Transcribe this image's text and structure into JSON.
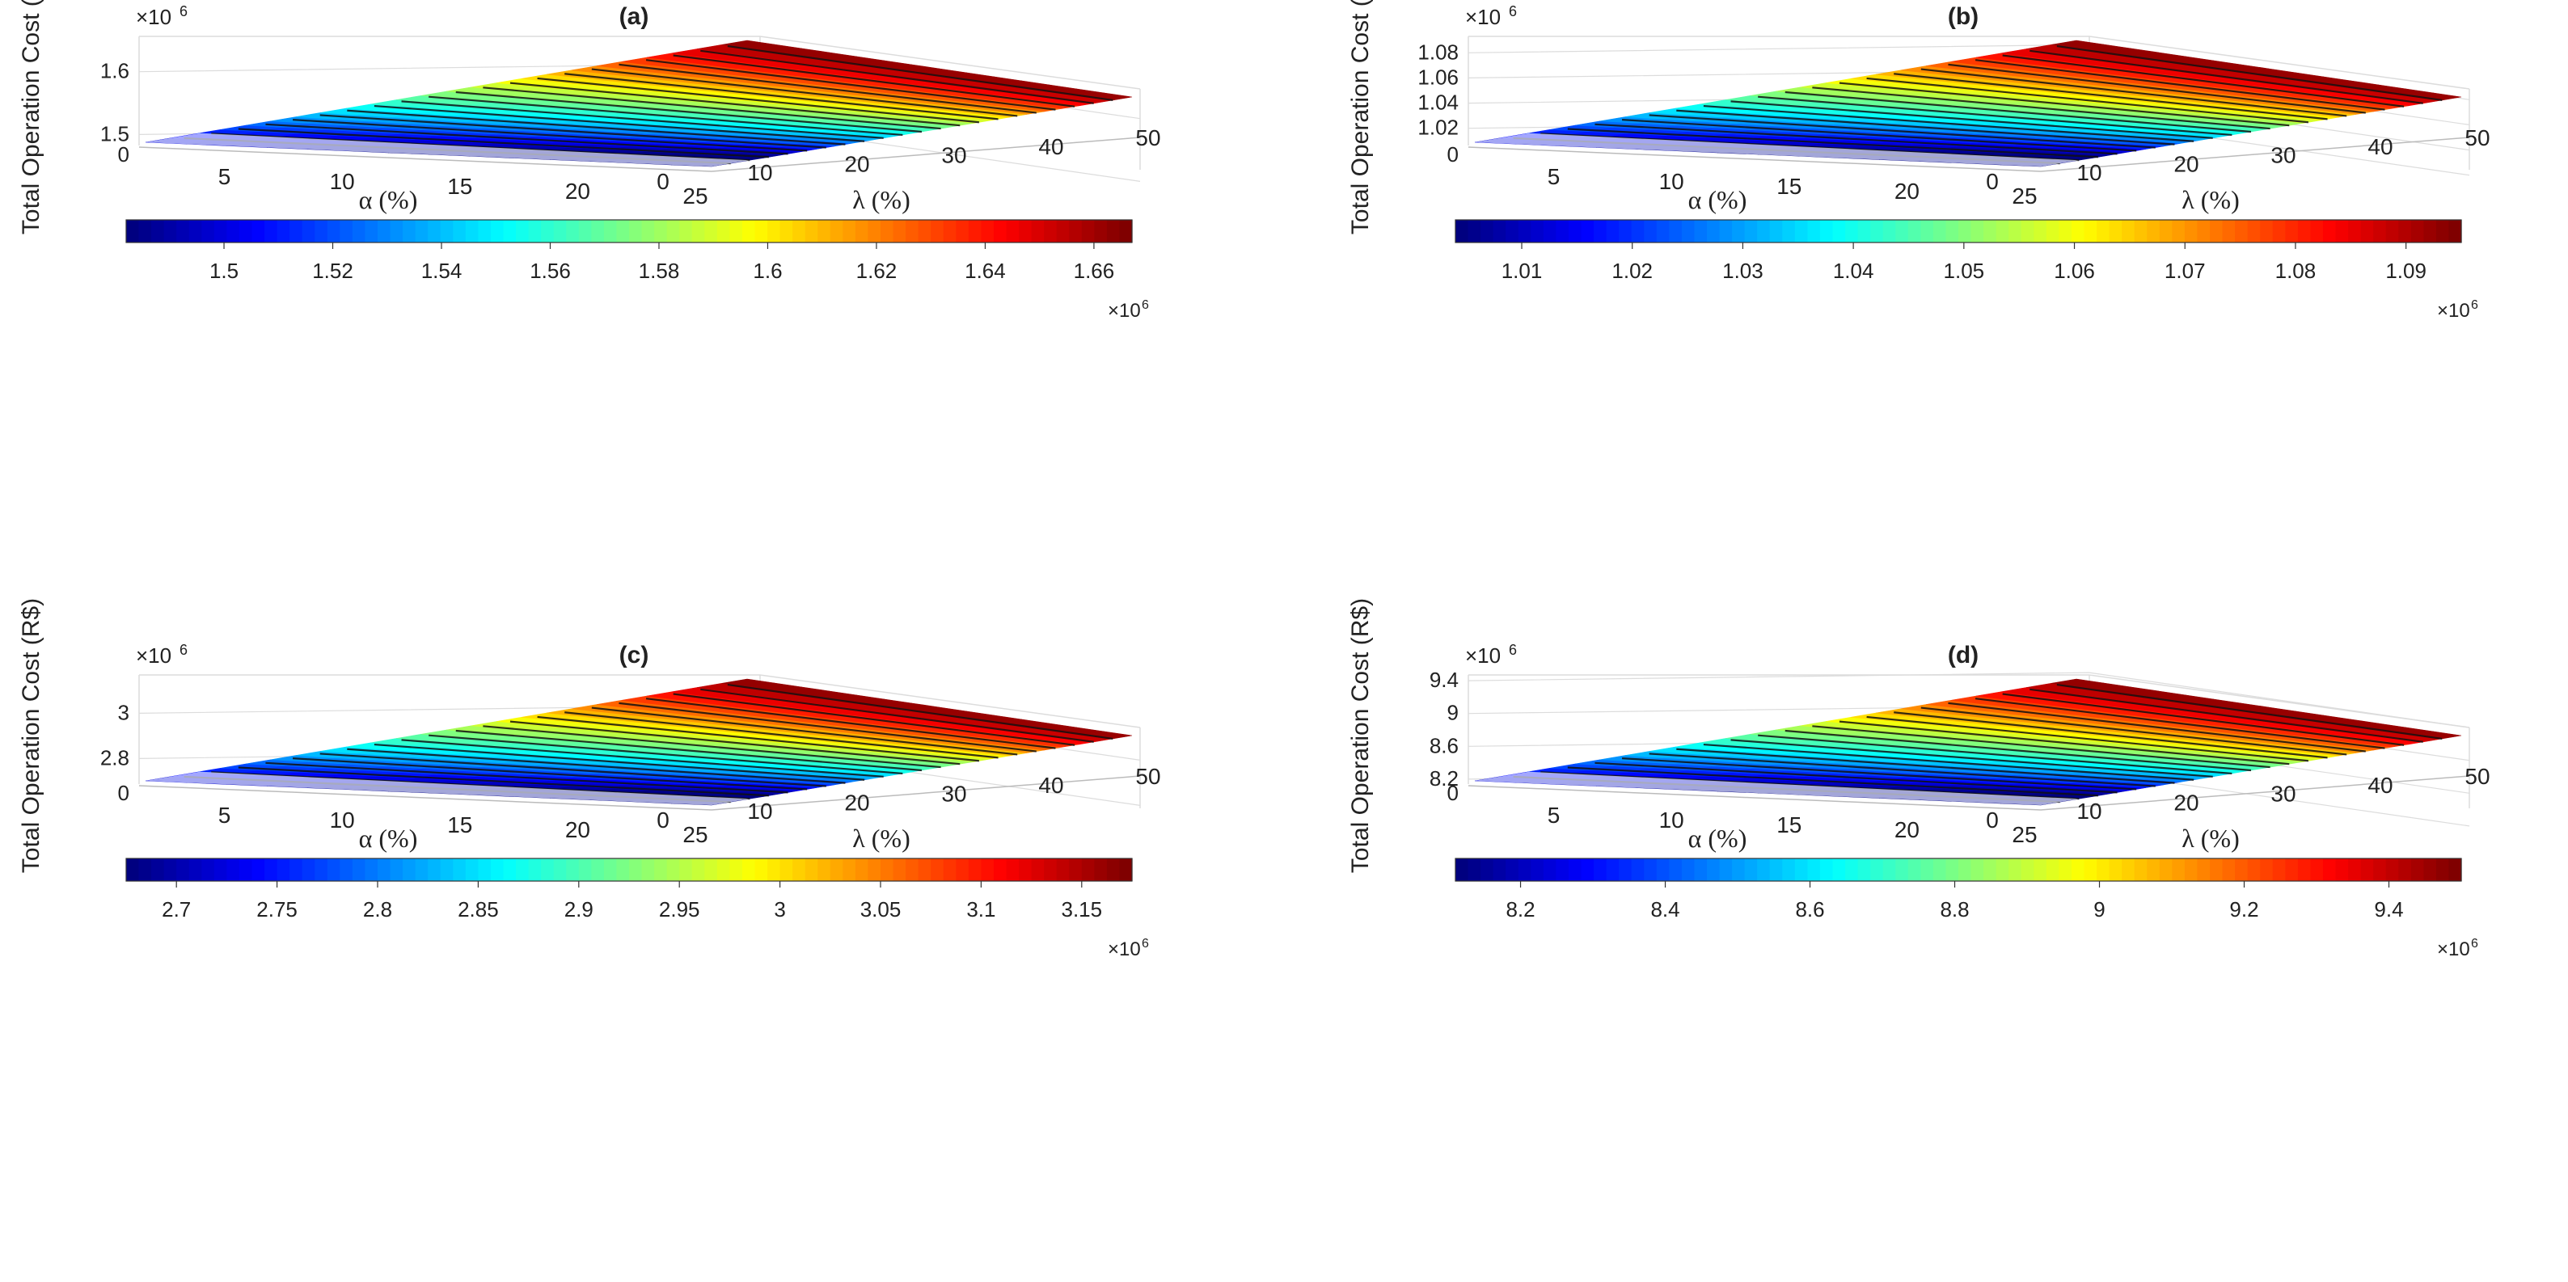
{
  "chart_data": [
    {
      "type": "surface3d",
      "panel_label": "(a)",
      "zlabel": "Total Operation Cost (R$)",
      "z_exponent_label": "×10",
      "z_exponent_power": "6",
      "xlabel": "α (%)",
      "ylabel": "λ (%)",
      "x_ticks": [
        "0",
        "5",
        "10",
        "15",
        "20",
        "25"
      ],
      "y_ticks": [
        "0",
        "10",
        "20",
        "30",
        "40",
        "50"
      ],
      "x_range": [
        0,
        25
      ],
      "y_range": [
        0,
        50
      ],
      "z_ticks": [
        "1.5",
        "1.6"
      ],
      "z_tick_values": [
        1.5,
        1.6
      ],
      "z_range": [
        1.48,
        1.66
      ],
      "colorbar_ticks": [
        "1.5",
        "1.52",
        "1.54",
        "1.56",
        "1.58",
        "1.6",
        "1.62",
        "1.64",
        "1.66"
      ],
      "colorbar_tick_values": [
        1.5,
        1.52,
        1.54,
        1.56,
        1.58,
        1.6,
        1.62,
        1.64,
        1.66
      ],
      "colorbar_range": [
        1.482,
        1.667
      ],
      "colorbar_exponent_label": "×10",
      "colorbar_exponent_power": "6",
      "colormap": "jet"
    },
    {
      "type": "surface3d",
      "panel_label": "(b)",
      "zlabel": "Total Operation Cost (R$)",
      "z_exponent_label": "×10",
      "z_exponent_power": "6",
      "xlabel": "α (%)",
      "ylabel": "λ (%)",
      "x_ticks": [
        "0",
        "5",
        "10",
        "15",
        "20",
        "25"
      ],
      "y_ticks": [
        "0",
        "10",
        "20",
        "30",
        "40",
        "50"
      ],
      "x_range": [
        0,
        25
      ],
      "y_range": [
        0,
        50
      ],
      "z_ticks": [
        "1.02",
        "1.04",
        "1.06",
        "1.08"
      ],
      "z_tick_values": [
        1.02,
        1.04,
        1.06,
        1.08
      ],
      "z_range": [
        1.005,
        1.095
      ],
      "colorbar_ticks": [
        "1.01",
        "1.02",
        "1.03",
        "1.04",
        "1.05",
        "1.06",
        "1.07",
        "1.08",
        "1.09"
      ],
      "colorbar_tick_values": [
        1.01,
        1.02,
        1.03,
        1.04,
        1.05,
        1.06,
        1.07,
        1.08,
        1.09
      ],
      "colorbar_range": [
        1.004,
        1.095
      ],
      "colorbar_exponent_label": "×10",
      "colorbar_exponent_power": "6",
      "colormap": "jet"
    },
    {
      "type": "surface3d",
      "panel_label": "(c)",
      "zlabel": "Total Operation Cost (R$)",
      "z_exponent_label": "×10",
      "z_exponent_power": "6",
      "xlabel": "α (%)",
      "ylabel": "λ (%)",
      "x_ticks": [
        "0",
        "5",
        "10",
        "15",
        "20",
        "25"
      ],
      "y_ticks": [
        "0",
        "10",
        "20",
        "30",
        "40",
        "50"
      ],
      "x_range": [
        0,
        25
      ],
      "y_range": [
        0,
        50
      ],
      "z_ticks": [
        "2.8",
        "3"
      ],
      "z_tick_values": [
        2.8,
        3.0
      ],
      "z_range": [
        2.68,
        3.18
      ],
      "colorbar_ticks": [
        "2.7",
        "2.75",
        "2.8",
        "2.85",
        "2.9",
        "2.95",
        "3",
        "3.05",
        "3.1",
        "3.15"
      ],
      "colorbar_tick_values": [
        2.7,
        2.75,
        2.8,
        2.85,
        2.9,
        2.95,
        3.0,
        3.05,
        3.1,
        3.15
      ],
      "colorbar_range": [
        2.675,
        3.175
      ],
      "colorbar_exponent_label": "×10",
      "colorbar_exponent_power": "6",
      "colormap": "jet"
    },
    {
      "type": "surface3d",
      "panel_label": "(d)",
      "zlabel": "Total Operation Cost (R$)",
      "z_exponent_label": "×10",
      "z_exponent_power": "6",
      "xlabel": "α (%)",
      "ylabel": "λ (%)",
      "x_ticks": [
        "0",
        "5",
        "10",
        "15",
        "20",
        "25"
      ],
      "y_ticks": [
        "0",
        "10",
        "20",
        "30",
        "40",
        "50"
      ],
      "x_range": [
        0,
        25
      ],
      "y_range": [
        0,
        50
      ],
      "z_ticks": [
        "8.2",
        "8.6",
        "9",
        "9.4"
      ],
      "z_tick_values": [
        8.2,
        8.6,
        9.0,
        9.4
      ],
      "z_range": [
        8.12,
        9.5
      ],
      "colorbar_ticks": [
        "8.2",
        "8.4",
        "8.6",
        "8.8",
        "9",
        "9.2",
        "9.4"
      ],
      "colorbar_tick_values": [
        8.2,
        8.4,
        8.6,
        8.8,
        9.0,
        9.2,
        9.4
      ],
      "colorbar_range": [
        8.11,
        9.5
      ],
      "colorbar_exponent_label": "×10",
      "colorbar_exponent_power": "6",
      "colormap": "jet"
    }
  ]
}
